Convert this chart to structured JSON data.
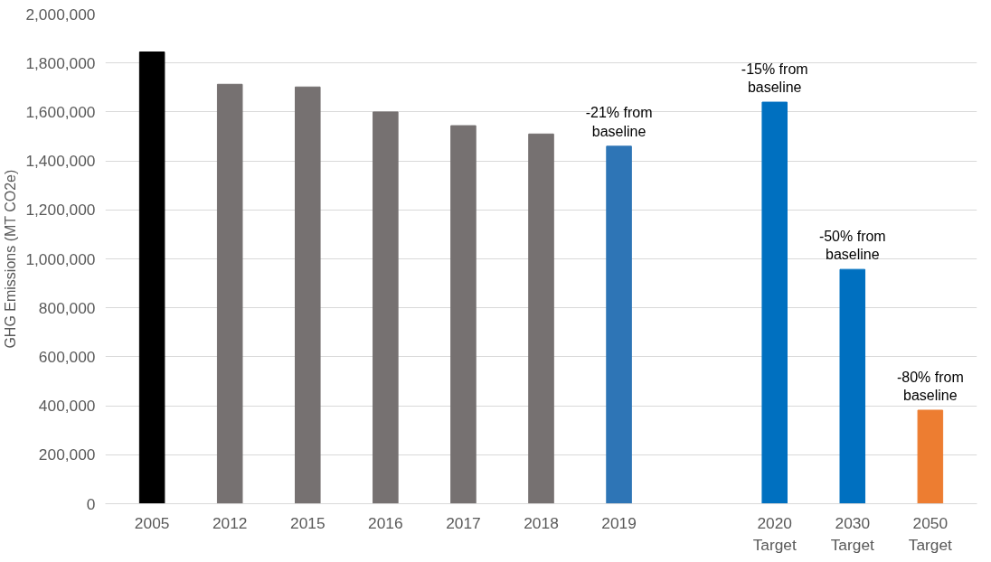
{
  "chart_data": {
    "type": "bar",
    "ylabel": "GHG Emissions (MT CO2e)",
    "categories": [
      "2005",
      "2012",
      "2015",
      "2016",
      "2017",
      "2018",
      "2019",
      null,
      "2020\nTarget",
      "2030\nTarget",
      "2050\nTarget"
    ],
    "values": [
      1845000,
      1713000,
      1702000,
      1600000,
      1544000,
      1510000,
      1460000,
      null,
      1640000,
      957000,
      382000
    ],
    "colors": [
      "#000000",
      "#767171",
      "#767171",
      "#767171",
      "#767171",
      "#767171",
      "#2e75b6",
      null,
      "#0070c0",
      "#0070c0",
      "#ed7d31"
    ],
    "ylim": [
      0,
      2000000
    ],
    "yticks": [
      {
        "value": 0,
        "label": "0"
      },
      {
        "value": 200000,
        "label": "200,000"
      },
      {
        "value": 400000,
        "label": "400,000"
      },
      {
        "value": 600000,
        "label": "600,000"
      },
      {
        "value": 800000,
        "label": "800,000"
      },
      {
        "value": 1000000,
        "label": "1,000,000"
      },
      {
        "value": 1200000,
        "label": "1,200,000"
      },
      {
        "value": 1400000,
        "label": "1,400,000"
      },
      {
        "value": 1600000,
        "label": "1,600,000"
      },
      {
        "value": 1800000,
        "label": "1,800,000"
      },
      {
        "value": 2000000,
        "label": "2,000,000"
      }
    ],
    "grid": "y",
    "annotations": [
      {
        "text": "-21% from\nbaseline",
        "x": "2019",
        "y": 1460000
      },
      {
        "text": "-15% from\nbaseline",
        "x": "2020\nTarget",
        "y": 1640000
      },
      {
        "text": "-50% from\nbaseline",
        "x": "2030\nTarget",
        "y": 957000
      },
      {
        "text": "-80% from\nbaseline",
        "x": "2050\nTarget",
        "y": 382000
      }
    ]
  }
}
